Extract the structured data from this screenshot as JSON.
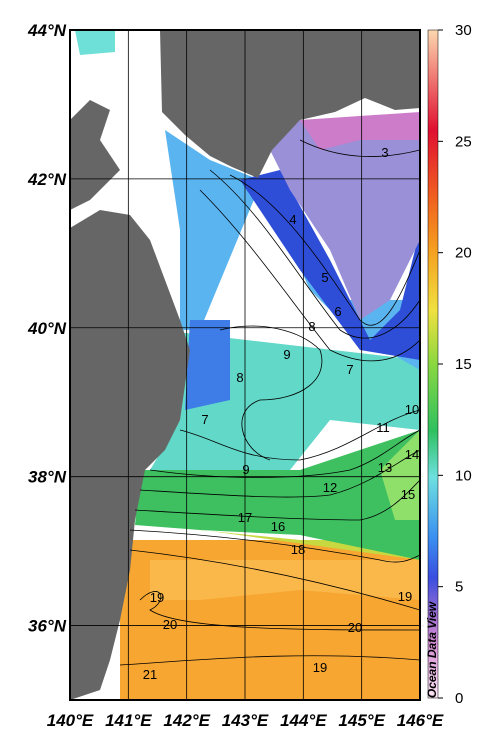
{
  "map": {
    "lat_ticks": [
      {
        "value": 44,
        "label": "44°N"
      },
      {
        "value": 42,
        "label": "42°N"
      },
      {
        "value": 40,
        "label": "40°N"
      },
      {
        "value": 38,
        "label": "38°N"
      },
      {
        "value": 36,
        "label": "36°N"
      }
    ],
    "lon_ticks": [
      {
        "value": 140,
        "label": "140°E"
      },
      {
        "value": 141,
        "label": "141°E"
      },
      {
        "value": 142,
        "label": "142°E"
      },
      {
        "value": 143,
        "label": "143°E"
      },
      {
        "value": 144,
        "label": "144°E"
      },
      {
        "value": 145,
        "label": "145°E"
      },
      {
        "value": 146,
        "label": "146°E"
      }
    ],
    "latlim": [
      35,
      44
    ],
    "lonlim": [
      140,
      146
    ],
    "colorbar": {
      "lim": [
        0,
        30
      ],
      "ticks": [
        0,
        5,
        10,
        15,
        20,
        25,
        30
      ]
    },
    "contour_labels": [
      3,
      4,
      5,
      6,
      7,
      8,
      9,
      8,
      7,
      9,
      11,
      10,
      13,
      14,
      15,
      12,
      17,
      16,
      18,
      19,
      20,
      20,
      21,
      19,
      19
    ],
    "credit": "Ocean Data View"
  }
}
